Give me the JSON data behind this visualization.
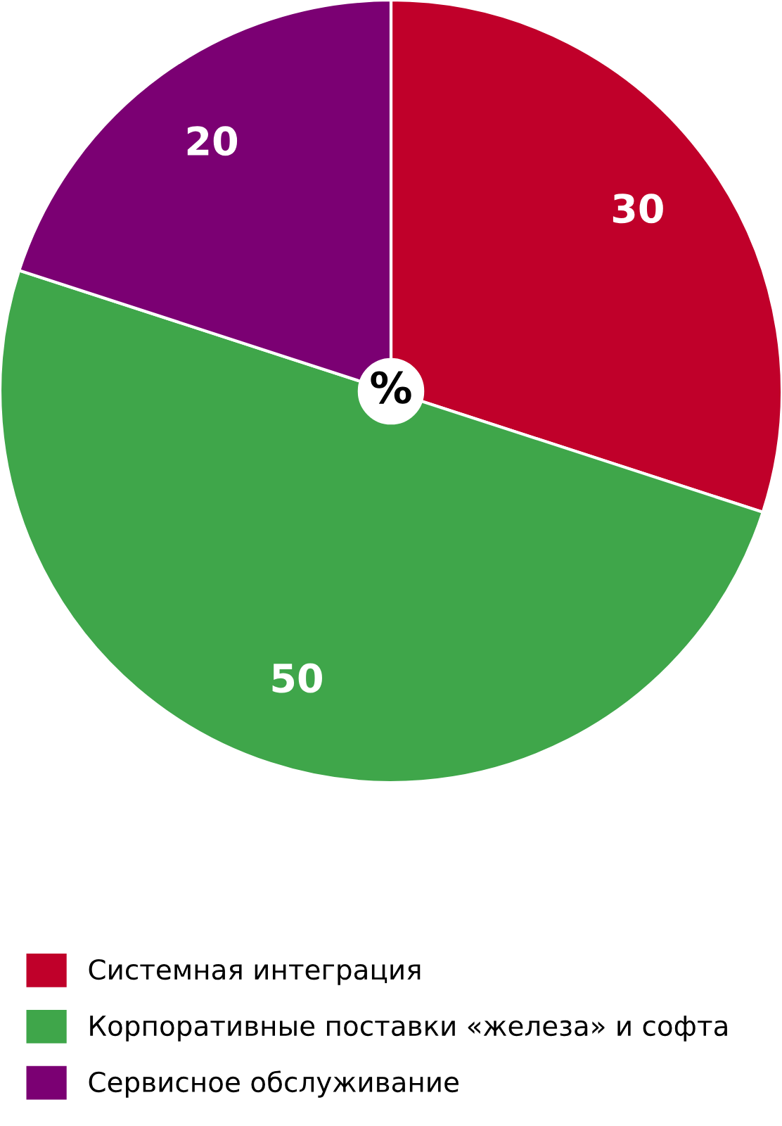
{
  "chart_data": {
    "type": "pie",
    "categories": [
      "Системная интеграция",
      "Корпоративные поставки «железа» и софта",
      "Сервисное обслуживание"
    ],
    "values": [
      30,
      50,
      20
    ],
    "colors": [
      "#c0002a",
      "#3fa64a",
      "#7b0073"
    ],
    "data_labels": true,
    "legend": "bottom",
    "annotations": [
      "%"
    ]
  }
}
